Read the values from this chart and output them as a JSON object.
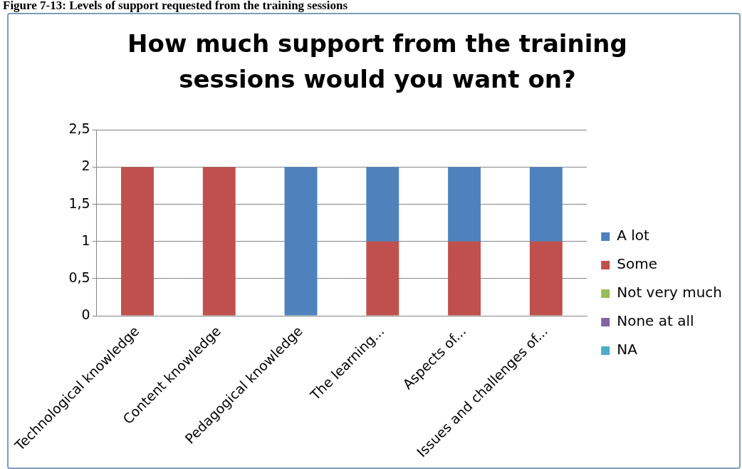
{
  "chart_data": {
    "type": "bar",
    "title": "How much support from the training sessions would you want on?",
    "annotations": [
      "Figure 7-13: Levels of support requested from the training sessions"
    ],
    "categories": [
      "Technological knowledge",
      "Content knowledge",
      "Pedagogical knowledge",
      "The learning...",
      "Aspects of...",
      "Issues and challenges of..."
    ],
    "series": [
      {
        "name": "NA",
        "color": "#4bacc6",
        "values": [
          0,
          0,
          0,
          0,
          0,
          0
        ]
      },
      {
        "name": "None at all",
        "color": "#8064a2",
        "values": [
          0,
          0,
          0,
          0,
          0,
          0
        ]
      },
      {
        "name": "Not very much",
        "color": "#9bbb59",
        "values": [
          0,
          0,
          0,
          0,
          0,
          0
        ]
      },
      {
        "name": "Some",
        "color": "#c0504d",
        "values": [
          2,
          2,
          0,
          1,
          1,
          1
        ]
      },
      {
        "name": "A lot",
        "color": "#4f81bd",
        "values": [
          0,
          0,
          2,
          1,
          1,
          1
        ]
      }
    ],
    "stacked": true,
    "ylim": [
      0,
      2.5
    ],
    "yticks": [
      0,
      {
        "value": 0.5,
        "label": "0,5"
      },
      1,
      {
        "value": 1.5,
        "label": "1,5"
      },
      2,
      {
        "value": 2.5,
        "label": "2,5"
      }
    ],
    "grid": "y",
    "legend": "right"
  }
}
